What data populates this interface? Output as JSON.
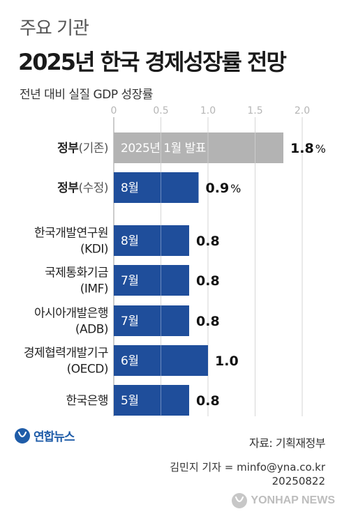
{
  "header": {
    "kicker": "주요 기관",
    "title": "2025년 한국 경제성장률 전망",
    "subtitle": "전년 대비 실질 GDP 성장률"
  },
  "chart_data": {
    "type": "bar",
    "orientation": "horizontal",
    "xlim": [
      0,
      2.0
    ],
    "ticks": [
      "0",
      "0.5",
      "1.0",
      "1.5",
      "2.0"
    ],
    "tick_values": [
      0,
      0.5,
      1.0,
      1.5,
      2.0
    ],
    "grid": true,
    "unit": "%",
    "categories": [
      {
        "lines": [
          "정부(기존)"
        ],
        "bold": "정부",
        "paren": "(기존)"
      },
      {
        "lines": [
          "정부(수정)"
        ],
        "bold": "정부",
        "paren": "(수정)"
      },
      {
        "lines": [
          "한국개발연구원",
          "(KDI)"
        ]
      },
      {
        "lines": [
          "국제통화기금",
          "(IMF)"
        ]
      },
      {
        "lines": [
          "아시아개발은행",
          "(ADB)"
        ]
      },
      {
        "lines": [
          "경제협력개발기구",
          "(OECD)"
        ]
      },
      {
        "lines": [
          "한국은행"
        ]
      }
    ],
    "values": [
      1.8,
      0.9,
      0.8,
      0.8,
      0.8,
      1.0,
      0.8
    ],
    "value_labels": [
      "1.8",
      "0.9",
      "0.8",
      "0.8",
      "0.8",
      "1.0",
      "0.8"
    ],
    "show_percent": [
      true,
      true,
      false,
      false,
      false,
      false,
      false
    ],
    "bar_labels": [
      "2025년 1월 발표",
      "8월",
      "8월",
      "7월",
      "7월",
      "6월",
      "5월"
    ],
    "bar_colors": [
      "#b3b3b3",
      "#1f4e9b",
      "#1f4e9b",
      "#1f4e9b",
      "#1f4e9b",
      "#1f4e9b",
      "#1f4e9b"
    ]
  },
  "footer": {
    "logo_text": "연합뉴스",
    "source": "자료: 기획재정부",
    "credit_line1": "김민지 기자 = minfo@yna.co.kr",
    "credit_line2": "20250822",
    "watermark": "YONHAP NEWS"
  }
}
